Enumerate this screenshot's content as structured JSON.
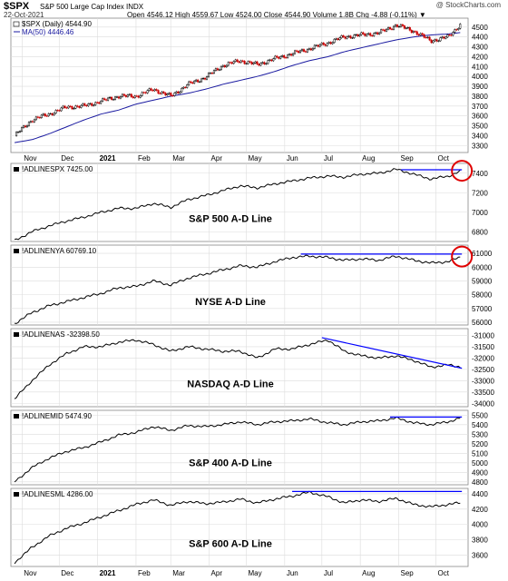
{
  "header": {
    "symbol": "$SPX",
    "description": "S&P 500 Large Cap Index  INDX",
    "brand": "@ StockCharts.com",
    "date": "22-Oct-2021",
    "ohlc": "Open 4546.12  High 4559.67  Low 4524.00  Close 4544.90  Volume 1.8B  Chg -4.88 (-0.11%) ▼"
  },
  "x_axis": {
    "labels": [
      "Nov",
      "Dec",
      "2021",
      "Feb",
      "Mar",
      "Apr",
      "May",
      "Jun",
      "Jul",
      "Aug",
      "Sep",
      "Oct"
    ]
  },
  "colors": {
    "price_up": "#000000",
    "price_down": "#cc0000",
    "ma": "#1a1aa0",
    "adline": "#000000",
    "trendline": "#0000ff",
    "circle": "#e00000"
  },
  "chart_data": [
    {
      "type": "candlestick",
      "title": "$SPX (Daily) 4544.90",
      "legend": [
        "$SPX (Daily) 4544.90",
        "MA(50) 4446.46"
      ],
      "yticks": [
        3300,
        3400,
        3500,
        3600,
        3700,
        3800,
        3900,
        4000,
        4100,
        4200,
        4300,
        4400,
        4500
      ],
      "ylim": [
        3230,
        4590
      ],
      "x": [
        "2020-10-26",
        "2020-11-09",
        "2020-11-23",
        "2020-12-07",
        "2020-12-21",
        "2021-01-04",
        "2021-01-18",
        "2021-02-01",
        "2021-02-15",
        "2021-03-01",
        "2021-03-15",
        "2021-03-29",
        "2021-04-12",
        "2021-04-26",
        "2021-05-10",
        "2021-05-24",
        "2021-06-07",
        "2021-06-21",
        "2021-07-06",
        "2021-07-19",
        "2021-08-02",
        "2021-08-16",
        "2021-08-30",
        "2021-09-13",
        "2021-09-27",
        "2021-10-11",
        "2021-10-22"
      ],
      "series": [
        {
          "name": "$SPX (Daily) 4544.90",
          "values": [
            3400,
            3560,
            3620,
            3690,
            3700,
            3750,
            3800,
            3800,
            3870,
            3800,
            3920,
            3990,
            4110,
            4160,
            4120,
            4180,
            4230,
            4280,
            4340,
            4400,
            4420,
            4440,
            4520,
            4460,
            4360,
            4400,
            4545
          ]
        },
        {
          "name": "MA(50) 4446.46",
          "values": [
            3330,
            3360,
            3420,
            3490,
            3560,
            3620,
            3660,
            3720,
            3760,
            3800,
            3830,
            3870,
            3920,
            3960,
            4000,
            4050,
            4110,
            4160,
            4200,
            4250,
            4290,
            4330,
            4370,
            4400,
            4420,
            4430,
            4446
          ]
        }
      ]
    },
    {
      "type": "line",
      "title": "!ADLINESPX 7425.00",
      "label": "S&P 500 A-D Line",
      "yticks": [
        6800,
        7000,
        7200,
        7400
      ],
      "ylim": [
        6700,
        7500
      ],
      "x": [
        "2020-10-26",
        "2020-11-09",
        "2020-11-23",
        "2020-12-07",
        "2020-12-21",
        "2021-01-04",
        "2021-01-18",
        "2021-02-01",
        "2021-02-15",
        "2021-03-01",
        "2021-03-15",
        "2021-03-29",
        "2021-04-12",
        "2021-04-26",
        "2021-05-10",
        "2021-05-24",
        "2021-06-07",
        "2021-06-21",
        "2021-07-06",
        "2021-07-19",
        "2021-08-02",
        "2021-08-16",
        "2021-08-30",
        "2021-09-13",
        "2021-09-27",
        "2021-10-11",
        "2021-10-22"
      ],
      "values": [
        6710,
        6800,
        6860,
        6910,
        6950,
        7000,
        7040,
        7040,
        7090,
        7050,
        7130,
        7170,
        7220,
        7270,
        7250,
        7290,
        7320,
        7350,
        7370,
        7360,
        7390,
        7400,
        7440,
        7390,
        7340,
        7370,
        7425
      ],
      "trendline": {
        "x": [
          "2021-09-03",
          "2021-10-22"
        ],
        "y": [
          7435,
          7435
        ]
      },
      "circle": {
        "x": "2021-10-22",
        "y": 7425
      }
    },
    {
      "type": "line",
      "title": "!ADLINENYA 60769.10",
      "label": "NYSE A-D Line",
      "yticks": [
        56000,
        57000,
        58000,
        59000,
        60000,
        61000
      ],
      "ylim": [
        55800,
        61600
      ],
      "x": [
        "2020-10-26",
        "2020-11-09",
        "2020-11-23",
        "2020-12-07",
        "2020-12-21",
        "2021-01-04",
        "2021-01-18",
        "2021-02-01",
        "2021-02-15",
        "2021-03-01",
        "2021-03-15",
        "2021-03-29",
        "2021-04-12",
        "2021-04-26",
        "2021-05-10",
        "2021-05-24",
        "2021-06-07",
        "2021-06-21",
        "2021-07-06",
        "2021-07-19",
        "2021-08-02",
        "2021-08-16",
        "2021-08-30",
        "2021-09-13",
        "2021-09-27",
        "2021-10-11",
        "2021-10-22"
      ],
      "values": [
        55900,
        56700,
        57200,
        57500,
        57800,
        58100,
        58500,
        58600,
        59000,
        58700,
        59200,
        59500,
        59800,
        60100,
        60000,
        60400,
        60700,
        60800,
        60700,
        60500,
        60600,
        60500,
        60800,
        60500,
        60300,
        60400,
        60769
      ],
      "trendline": {
        "x": [
          "2021-06-14",
          "2021-10-22"
        ],
        "y": [
          60950,
          60950
        ]
      },
      "circle": {
        "x": "2021-10-22",
        "y": 60769
      }
    },
    {
      "type": "line",
      "title": "!ADLINENAS -32398.50",
      "label": "NASDAQ A-D Line",
      "yticks": [
        -34000,
        -33500,
        -33000,
        -32500,
        -32000,
        -31500,
        -31000
      ],
      "ylim": [
        -34150,
        -30700
      ],
      "x": [
        "2020-10-26",
        "2020-11-09",
        "2020-11-23",
        "2020-12-07",
        "2020-12-21",
        "2021-01-04",
        "2021-01-18",
        "2021-02-01",
        "2021-02-15",
        "2021-03-01",
        "2021-03-15",
        "2021-03-29",
        "2021-04-12",
        "2021-04-26",
        "2021-05-10",
        "2021-05-24",
        "2021-06-07",
        "2021-06-21",
        "2021-07-06",
        "2021-07-19",
        "2021-08-02",
        "2021-08-16",
        "2021-08-30",
        "2021-09-13",
        "2021-09-27",
        "2021-10-11",
        "2021-10-22"
      ],
      "values": [
        -33800,
        -33000,
        -32300,
        -31800,
        -31500,
        -31500,
        -31300,
        -31200,
        -31400,
        -31700,
        -31500,
        -31600,
        -31700,
        -31700,
        -32000,
        -31600,
        -31600,
        -31400,
        -31200,
        -31700,
        -31900,
        -32000,
        -31900,
        -32100,
        -32400,
        -32300,
        -32398
      ],
      "trendline": {
        "x": [
          "2021-07-01",
          "2021-10-22"
        ],
        "y": [
          -31100,
          -32450
        ]
      }
    },
    {
      "type": "line",
      "title": "!ADLINEMID 5474.90",
      "label": "S&P 400 A-D Line",
      "yticks": [
        4800,
        4900,
        5000,
        5100,
        5200,
        5300,
        5400,
        5500
      ],
      "ylim": [
        4770,
        5550
      ],
      "x": [
        "2020-10-26",
        "2020-11-09",
        "2020-11-23",
        "2020-12-07",
        "2020-12-21",
        "2021-01-04",
        "2021-01-18",
        "2021-02-01",
        "2021-02-15",
        "2021-03-01",
        "2021-03-15",
        "2021-03-29",
        "2021-04-12",
        "2021-04-26",
        "2021-05-10",
        "2021-05-24",
        "2021-06-07",
        "2021-06-21",
        "2021-07-06",
        "2021-07-19",
        "2021-08-02",
        "2021-08-16",
        "2021-08-30",
        "2021-09-13",
        "2021-09-27",
        "2021-10-11",
        "2021-10-22"
      ],
      "values": [
        4800,
        4950,
        5050,
        5120,
        5160,
        5220,
        5290,
        5320,
        5380,
        5340,
        5390,
        5380,
        5400,
        5430,
        5400,
        5430,
        5440,
        5460,
        5420,
        5400,
        5430,
        5440,
        5470,
        5420,
        5400,
        5430,
        5475
      ],
      "trendline": {
        "x": [
          "2021-08-25",
          "2021-10-22"
        ],
        "y": [
          5480,
          5480
        ]
      }
    },
    {
      "type": "line",
      "title": "!ADLINESML 4286.00",
      "label": "S&P 600 A-D Line",
      "yticks": [
        3600,
        3800,
        4000,
        4200,
        4400
      ],
      "ylim": [
        3450,
        4470
      ],
      "x": [
        "2020-10-26",
        "2020-11-09",
        "2020-11-23",
        "2020-12-07",
        "2020-12-21",
        "2021-01-04",
        "2021-01-18",
        "2021-02-01",
        "2021-02-15",
        "2021-03-01",
        "2021-03-15",
        "2021-03-29",
        "2021-04-12",
        "2021-04-26",
        "2021-05-10",
        "2021-05-24",
        "2021-06-07",
        "2021-06-21",
        "2021-07-06",
        "2021-07-19",
        "2021-08-02",
        "2021-08-16",
        "2021-08-30",
        "2021-09-13",
        "2021-09-27",
        "2021-10-11",
        "2021-10-22"
      ],
      "values": [
        3500,
        3700,
        3850,
        3950,
        4020,
        4100,
        4180,
        4260,
        4320,
        4250,
        4300,
        4270,
        4290,
        4330,
        4280,
        4330,
        4370,
        4420,
        4360,
        4280,
        4320,
        4300,
        4340,
        4260,
        4230,
        4260,
        4286
      ],
      "trendline": {
        "x": [
          "2021-06-07",
          "2021-10-22"
        ],
        "y": [
          4430,
          4430
        ]
      }
    }
  ]
}
